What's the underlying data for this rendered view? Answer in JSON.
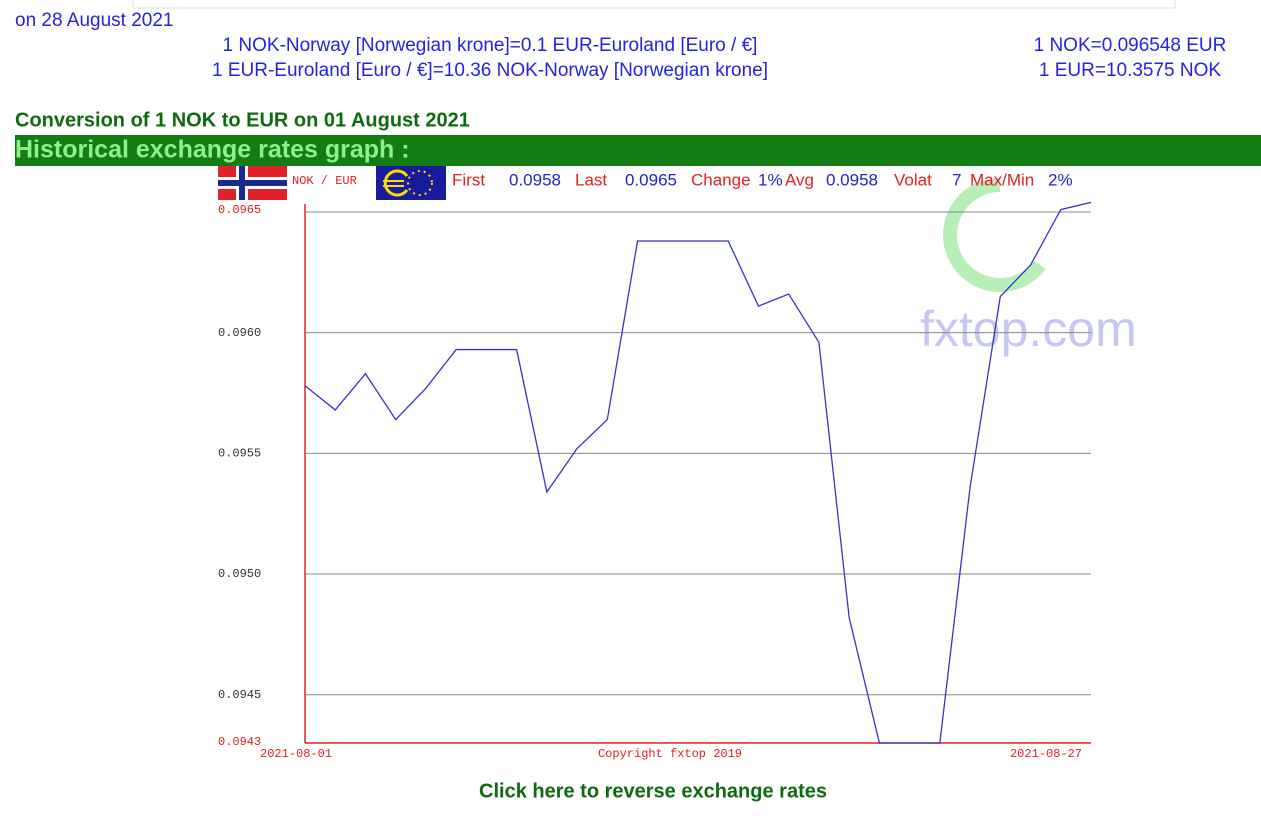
{
  "page": {
    "date_line": "on 28 August 2021",
    "conversions": [
      "1 NOK-Norway [Norwegian krone]=0.1 EUR-Euroland [Euro / €]",
      "1 EUR-Euroland [Euro / €]=10.36 NOK-Norway [Norwegian krone]"
    ],
    "rates": [
      "1 NOK=0.096548 EUR",
      "1 EUR=10.3575 NOK"
    ],
    "conversion_heading": "Conversion of 1 NOK to EUR on 01 August 2021",
    "section_title": "Historical exchange rates graph :",
    "reverse_link": "Click here to reverse exchange rates"
  },
  "chart_data": {
    "type": "line",
    "stats": [
      {
        "label": "First",
        "value": "0.0958"
      },
      {
        "label": "Last",
        "value": "0.0965"
      },
      {
        "label": "Change",
        "value": "1%"
      },
      {
        "label": "Avg",
        "value": "0.0958"
      },
      {
        "label": "Volat",
        "value": "7"
      },
      {
        "label": "Max/Min",
        "value": "2%"
      }
    ],
    "copyright": "Copyright fxtop 2019",
    "watermark": "fxtop.com",
    "x": [
      "2021-08-01",
      "2021-08-02",
      "2021-08-03",
      "2021-08-04",
      "2021-08-05",
      "2021-08-06",
      "2021-08-07",
      "2021-08-08",
      "2021-08-09",
      "2021-08-10",
      "2021-08-11",
      "2021-08-12",
      "2021-08-13",
      "2021-08-14",
      "2021-08-15",
      "2021-08-16",
      "2021-08-17",
      "2021-08-18",
      "2021-08-19",
      "2021-08-20",
      "2021-08-21",
      "2021-08-22",
      "2021-08-23",
      "2021-08-24",
      "2021-08-25",
      "2021-08-26",
      "2021-08-27"
    ],
    "xlim": [
      "2021-08-01",
      "2021-08-27"
    ],
    "series": [
      {
        "name": "NOK / EUR",
        "color": "#3333cc",
        "values": [
          0.09578,
          0.09568,
          0.09583,
          0.09564,
          0.09577,
          0.09593,
          0.09593,
          0.09593,
          0.09534,
          0.09552,
          0.09564,
          0.09638,
          0.09638,
          0.09638,
          0.09638,
          0.09611,
          0.09616,
          0.09596,
          0.09482,
          0.0943,
          0.0943,
          0.0943,
          0.09536,
          0.09615,
          0.09628,
          0.09651,
          0.09654
        ]
      }
    ],
    "ylim": [
      0.0943,
      0.0965
    ],
    "yticks": [
      0.0943,
      0.0945,
      {
        "value": 0.095,
        "label": "0.0950"
      },
      0.0955,
      {
        "value": 0.096,
        "label": "0.0960"
      },
      0.0965
    ],
    "grid": true
  }
}
